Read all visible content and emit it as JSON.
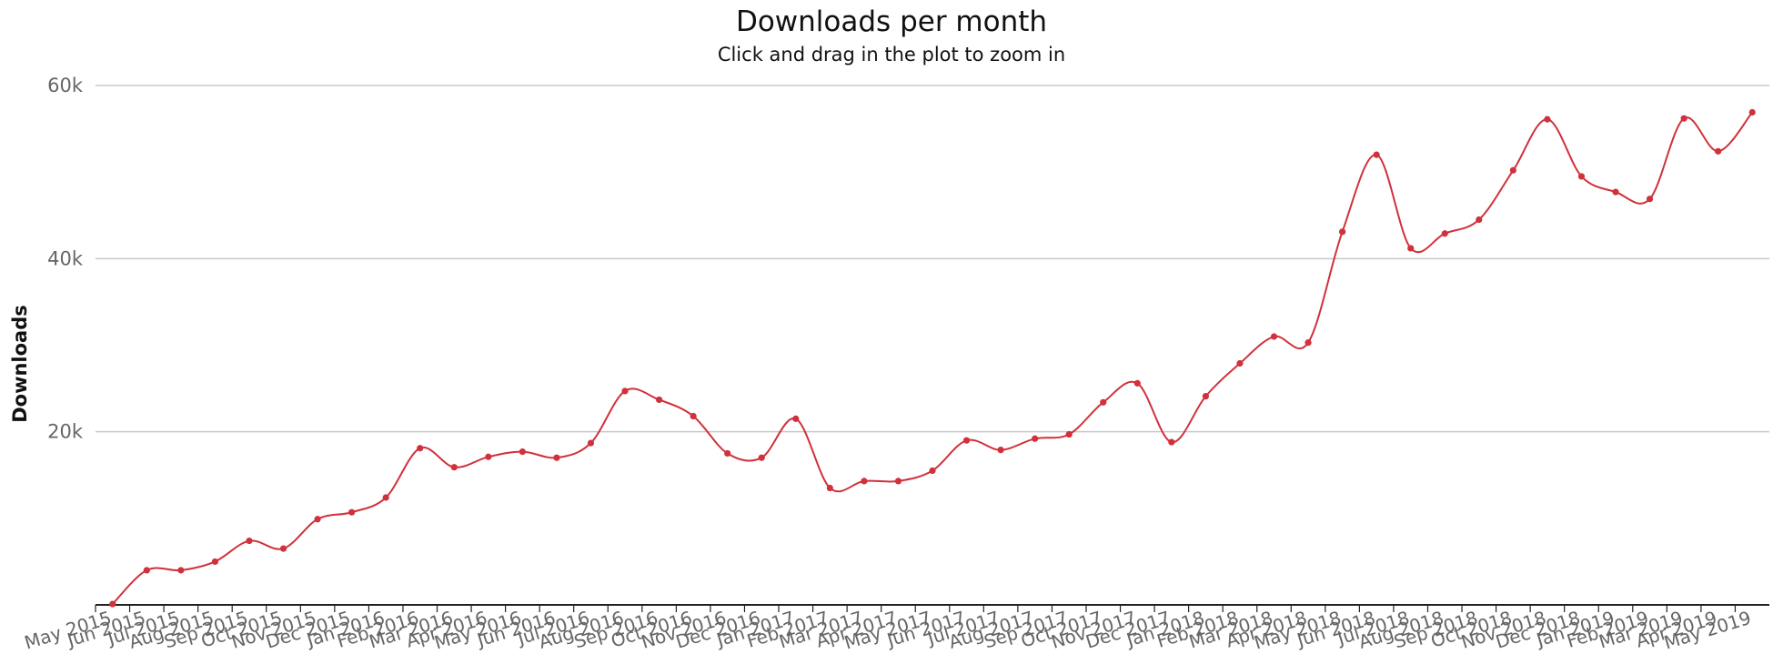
{
  "chart_data": {
    "type": "line",
    "title": "Downloads per month",
    "subtitle": "Click and drag in the plot to zoom in",
    "xlabel": "",
    "ylabel": "Downloads",
    "ylim": [
      0,
      60000
    ],
    "y_ticks": [
      20000,
      40000,
      60000
    ],
    "y_tick_labels": [
      "20k",
      "40k",
      "60k"
    ],
    "grid": true,
    "legend": "none",
    "categories": [
      "May 2015",
      "Jun 2015",
      "Jul 2015",
      "Aug 2015",
      "Sep 2015",
      "Oct 2015",
      "Nov 2015",
      "Dec 2015",
      "Jan 2016",
      "Feb 2016",
      "Mar 2016",
      "Apr 2016",
      "May 2016",
      "Jun 2016",
      "Jul 2016",
      "Aug 2016",
      "Sep 2016",
      "Oct 2016",
      "Nov 2016",
      "Dec 2016",
      "Jan 2017",
      "Feb 2017",
      "Mar 2017",
      "Apr 2017",
      "May 2017",
      "Jun 2017",
      "Jul 2017",
      "Aug 2017",
      "Sep 2017",
      "Oct 2017",
      "Nov 2017",
      "Dec 2017",
      "Jan 2018",
      "Feb 2018",
      "Mar 2018",
      "Apr 2018",
      "May 2018",
      "Jun 2018",
      "Jul 2018",
      "Aug 2018",
      "Sep 2018",
      "Oct 2018",
      "Nov 2018",
      "Dec 2018",
      "Jan 2019",
      "Feb 2019",
      "Mar 2019",
      "Apr 2019",
      "May 2019"
    ],
    "series": [
      {
        "color": "#d0313b",
        "values": [
          100,
          4000,
          4000,
          5000,
          7400,
          6500,
          9900,
          10700,
          12400,
          18100,
          15900,
          17100,
          17700,
          17000,
          18700,
          24700,
          23700,
          21800,
          17500,
          17000,
          21500,
          13500,
          14300,
          14300,
          15500,
          19000,
          17900,
          19200,
          19700,
          23400,
          25600,
          18800,
          24100,
          27900,
          31000,
          30300,
          43100,
          52000,
          41200,
          42900,
          44500,
          50200,
          56100,
          49500,
          47700,
          46900,
          56200,
          52400,
          56900
        ]
      }
    ]
  }
}
